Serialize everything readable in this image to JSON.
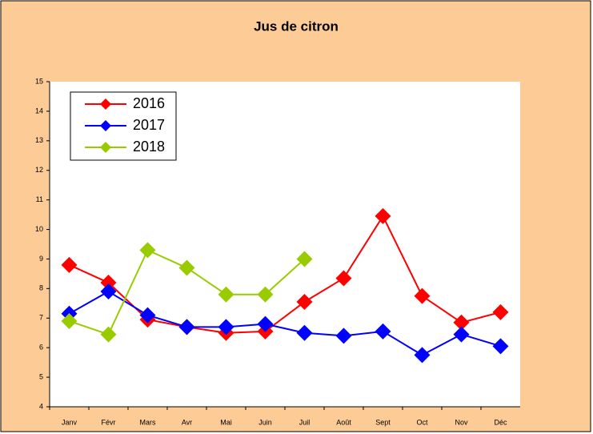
{
  "chart_data": {
    "type": "line",
    "title": "Jus de citron",
    "categories": [
      "Janv",
      "Févr",
      "Mars",
      "Avr",
      "Mai",
      "Juin",
      "Juil",
      "Août",
      "Sept",
      "Oct",
      "Nov",
      "Déc"
    ],
    "series": [
      {
        "name": "2016",
        "color": "#ff0000",
        "values": [
          8.8,
          8.2,
          6.95,
          6.7,
          6.5,
          6.55,
          7.55,
          8.35,
          10.45,
          7.75,
          6.85,
          7.2
        ]
      },
      {
        "name": "2017",
        "color": "#0000ff",
        "values": [
          7.15,
          7.9,
          7.1,
          6.7,
          6.7,
          6.8,
          6.5,
          6.4,
          6.55,
          5.75,
          6.45,
          6.05
        ]
      },
      {
        "name": "2018",
        "color": "#99cc00",
        "values": [
          6.9,
          6.45,
          9.3,
          8.7,
          7.8,
          7.8,
          9.0,
          null,
          null,
          null,
          null,
          null
        ]
      }
    ],
    "ylim": [
      4,
      15
    ],
    "yticks": [
      4,
      5,
      6,
      7,
      8,
      9,
      10,
      11,
      12,
      13,
      14,
      15
    ],
    "grid": false,
    "legend": "upper-left"
  }
}
